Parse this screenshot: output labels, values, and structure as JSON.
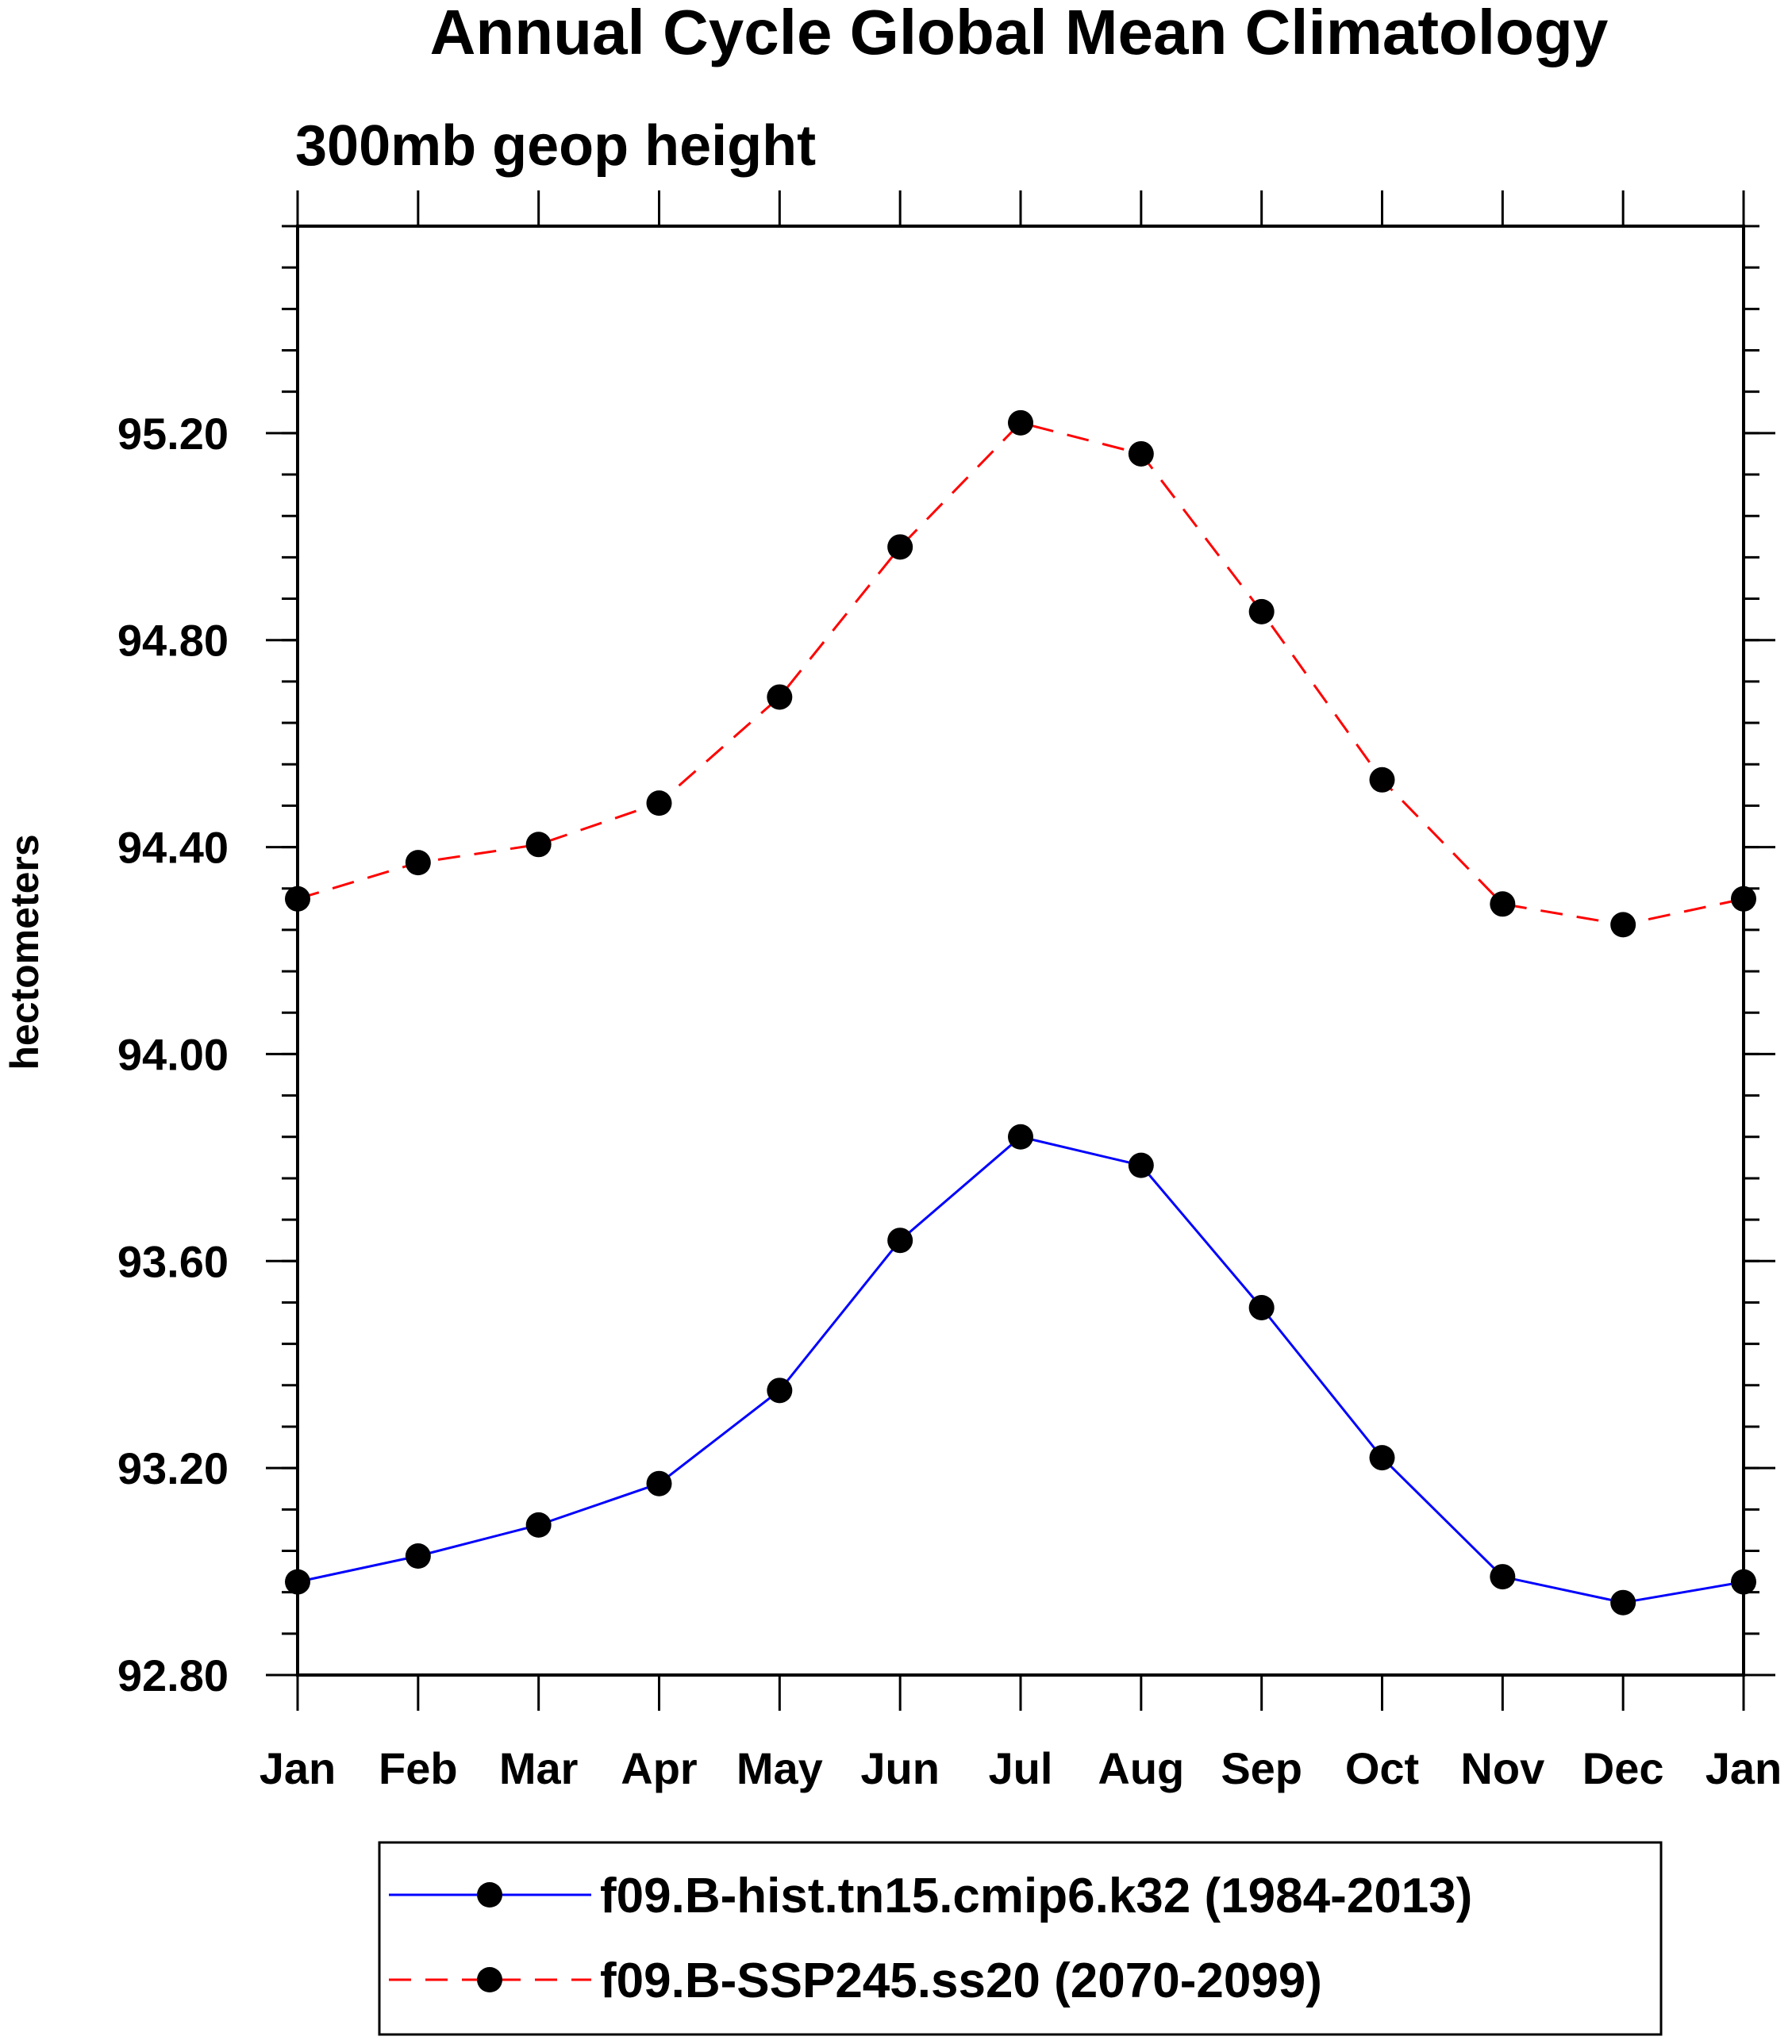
{
  "chart_data": {
    "type": "line",
    "title": "Annual Cycle Global Mean Climatology",
    "subtitle": "300mb geop height",
    "ylabel": "hectometers",
    "xlabel": "",
    "categories": [
      "Jan",
      "Feb",
      "Mar",
      "Apr",
      "May",
      "Jun",
      "Jul",
      "Aug",
      "Sep",
      "Oct",
      "Nov",
      "Dec",
      "Jan"
    ],
    "ylim": [
      92.8,
      95.6
    ],
    "yticks": [
      "92.80",
      "93.20",
      "93.60",
      "94.00",
      "94.40",
      "94.80",
      "95.20"
    ],
    "legend_position": "bottom",
    "series": [
      {
        "name": "f09.B-hist.tn15.cmip6.k32 (1984-2013)",
        "color": "#0000ff",
        "dash": "solid",
        "marker": "filled-circle",
        "values": [
          92.98,
          93.03,
          93.09,
          93.17,
          93.35,
          93.64,
          93.84,
          93.785,
          93.51,
          93.22,
          92.99,
          92.94,
          92.98
        ]
      },
      {
        "name": "f09.B-SSP245.ss20 (2070-2099)",
        "color": "#ff0000",
        "dash": "dashed",
        "marker": "filled-circle",
        "values": [
          94.3,
          94.37,
          94.405,
          94.485,
          94.69,
          94.98,
          95.22,
          95.16,
          94.855,
          94.53,
          94.29,
          94.25,
          94.3
        ]
      }
    ]
  }
}
